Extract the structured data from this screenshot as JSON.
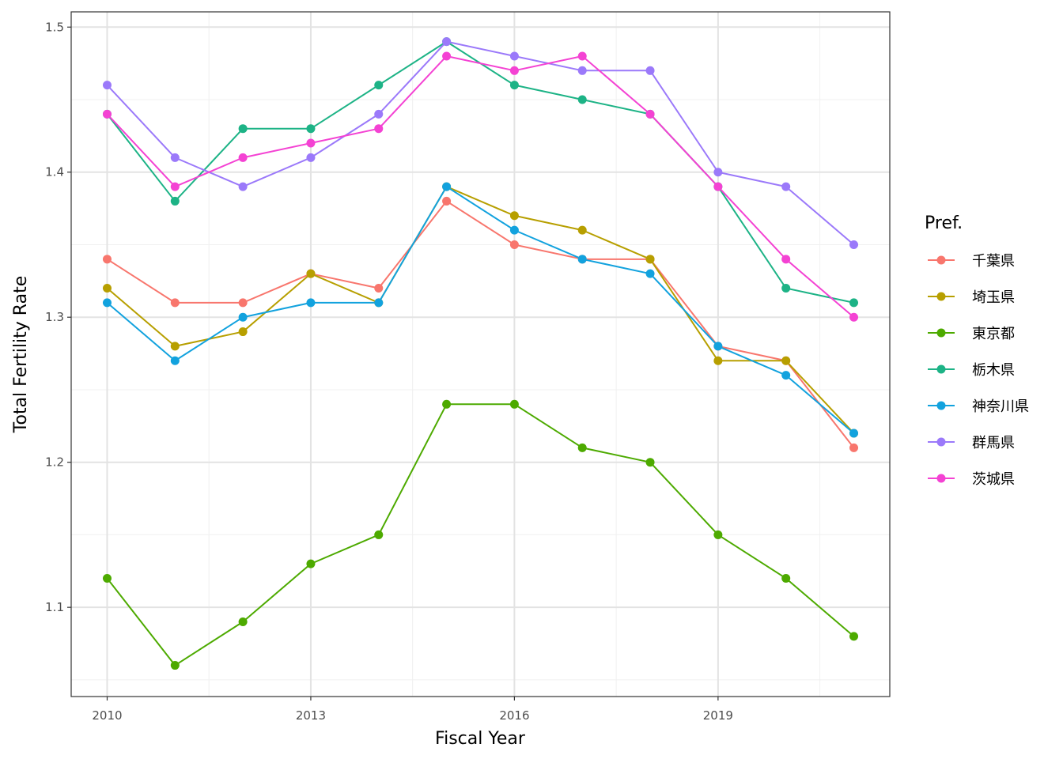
{
  "chart_data": {
    "type": "line",
    "xlabel": "Fiscal Year",
    "ylabel": "Total Fertility Rate",
    "x": [
      2010,
      2011,
      2012,
      2013,
      2014,
      2015,
      2016,
      2017,
      2018,
      2019,
      2020,
      2021
    ],
    "xticks": [
      "2010",
      "2013",
      "2016",
      "2019"
    ],
    "yticks": [
      "1.1",
      "1.2",
      "1.3",
      "1.4",
      "1.5"
    ],
    "xlim": [
      2009.47,
      2021.53
    ],
    "ylim": [
      1.0385,
      1.5105
    ],
    "grid": true,
    "legend": {
      "title": "Pref.",
      "position": "right"
    },
    "series": [
      {
        "name": "千葉県",
        "color": "#F8766D",
        "values": [
          1.34,
          1.31,
          1.31,
          1.33,
          1.32,
          1.38,
          1.35,
          1.34,
          1.34,
          1.28,
          1.27,
          1.21
        ]
      },
      {
        "name": "埼玉県",
        "color": "#B79F00",
        "values": [
          1.32,
          1.28,
          1.29,
          1.33,
          1.31,
          1.39,
          1.37,
          1.36,
          1.34,
          1.27,
          1.27,
          1.22
        ]
      },
      {
        "name": "東京都",
        "color": "#4DAA00",
        "values": [
          1.12,
          1.06,
          1.09,
          1.13,
          1.15,
          1.24,
          1.24,
          1.21,
          1.2,
          1.15,
          1.12,
          1.08
        ]
      },
      {
        "name": "栃木県",
        "color": "#1DB386",
        "values": [
          1.44,
          1.38,
          1.43,
          1.43,
          1.46,
          1.49,
          1.46,
          1.45,
          1.44,
          1.39,
          1.32,
          1.31
        ]
      },
      {
        "name": "神奈川県",
        "color": "#12A2DE",
        "values": [
          1.31,
          1.27,
          1.3,
          1.31,
          1.31,
          1.39,
          1.36,
          1.34,
          1.33,
          1.28,
          1.26,
          1.22
        ]
      },
      {
        "name": "群馬県",
        "color": "#9B79FA",
        "values": [
          1.46,
          1.41,
          1.39,
          1.41,
          1.44,
          1.49,
          1.48,
          1.47,
          1.47,
          1.4,
          1.39,
          1.35
        ]
      },
      {
        "name": "茨城県",
        "color": "#F442D3",
        "values": [
          1.44,
          1.39,
          1.41,
          1.42,
          1.43,
          1.48,
          1.47,
          1.48,
          1.44,
          1.39,
          1.34,
          1.3
        ]
      }
    ]
  }
}
